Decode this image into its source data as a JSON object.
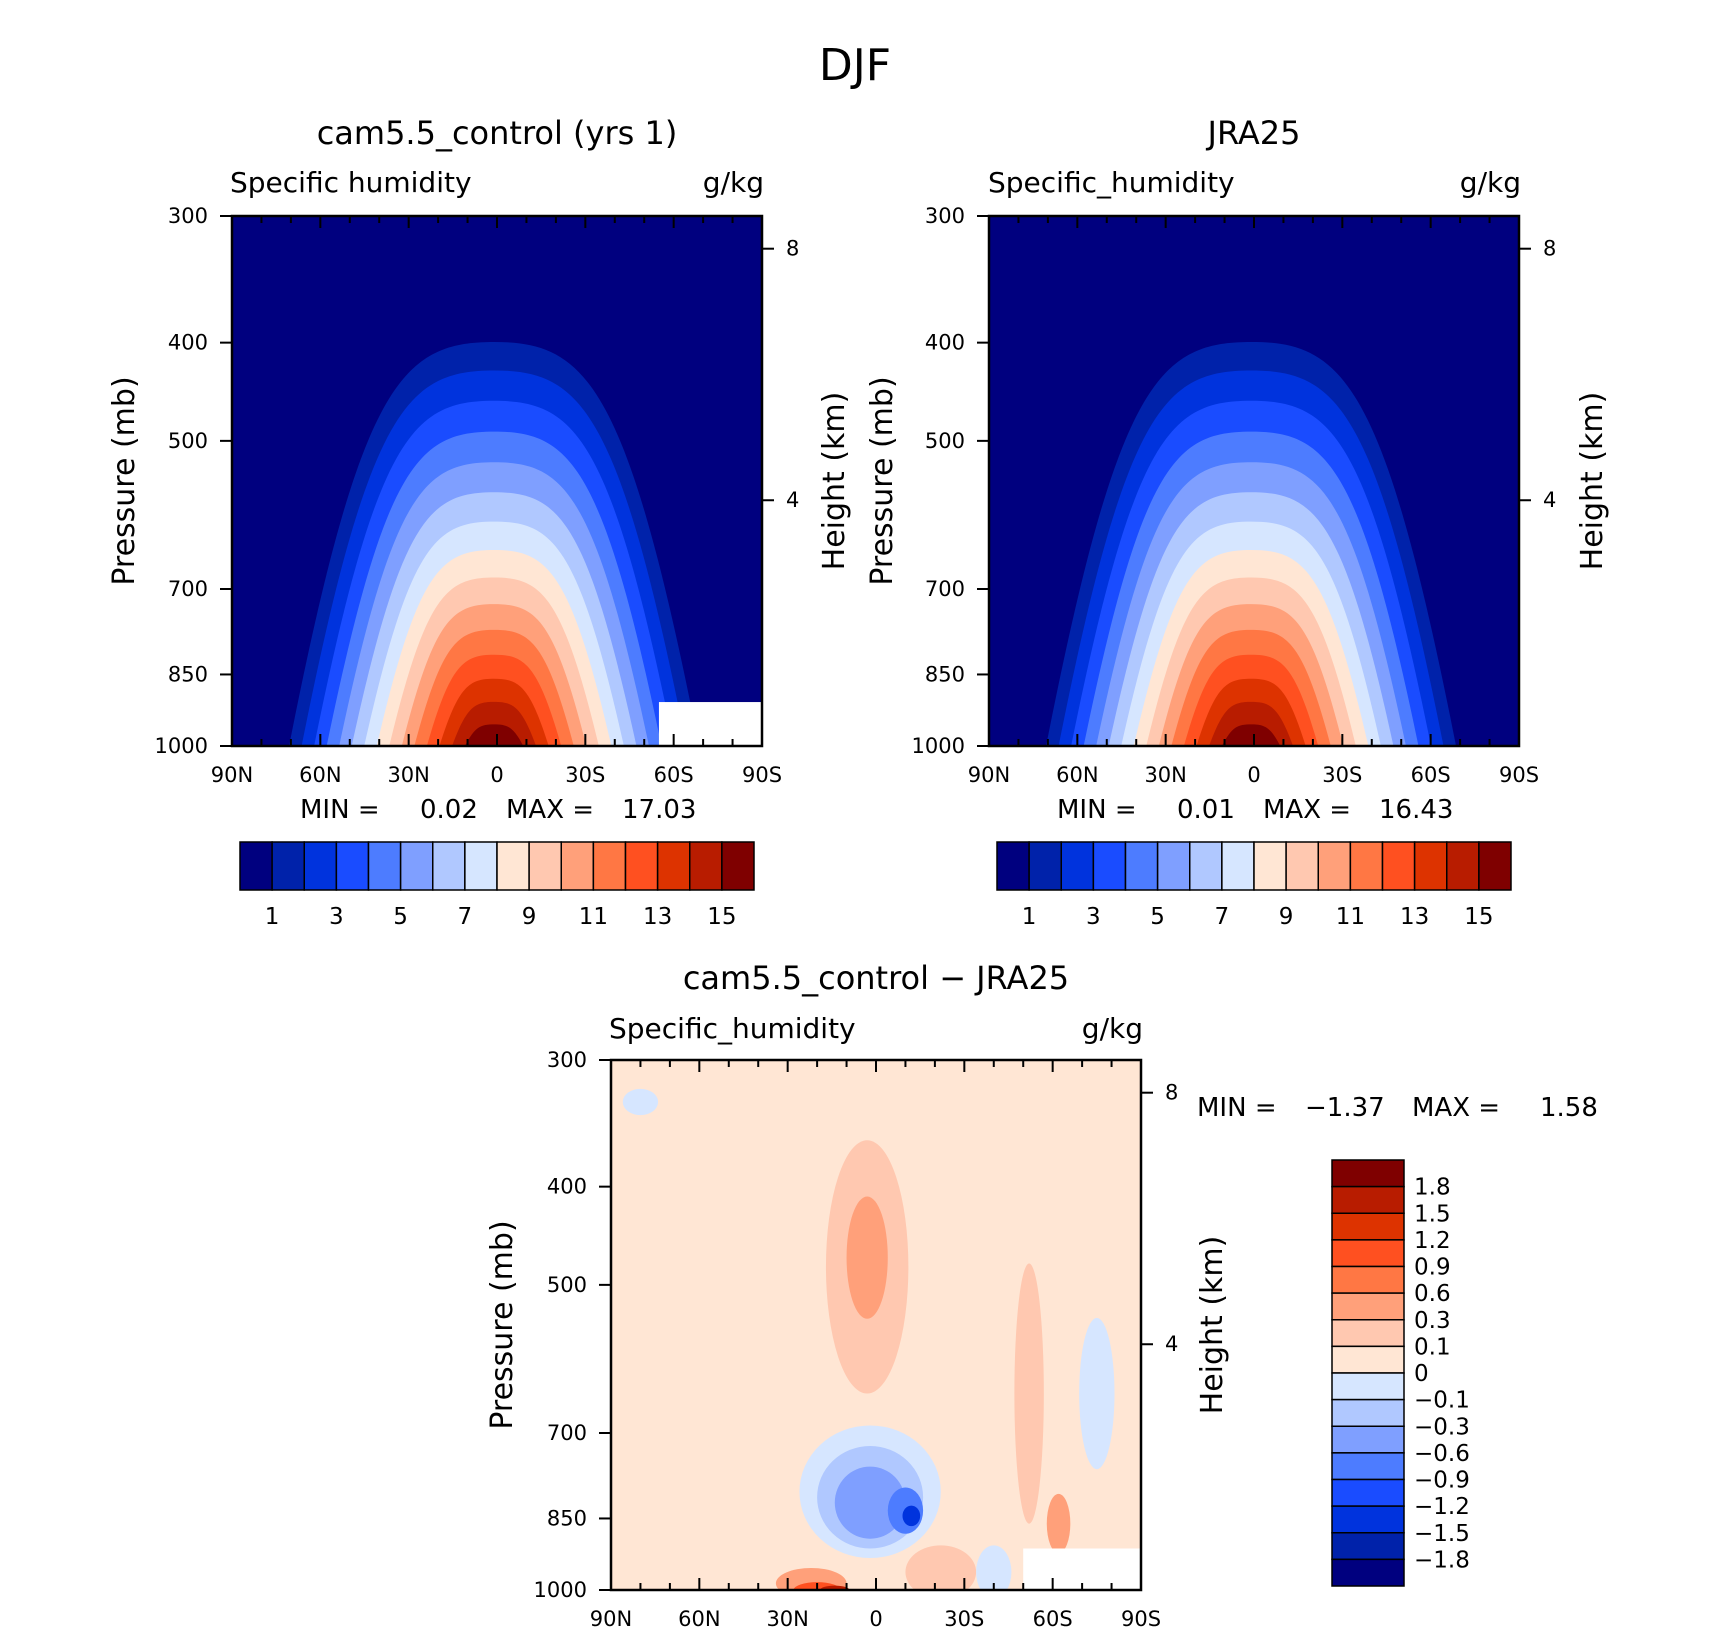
{
  "figure": {
    "title": "DJF"
  },
  "chart_data": [
    {
      "id": "model",
      "type": "contour",
      "title": "cam5.5_control (yrs 1)",
      "variable": "Specific humidity",
      "units": "g/kg",
      "xlabel": "",
      "ylabel": "Pressure (mb)",
      "ylabel_right": "Height (km)",
      "x_ticks": [
        "90N",
        "60N",
        "30N",
        "0",
        "30S",
        "60S",
        "90S"
      ],
      "x_range": [
        90,
        -90
      ],
      "y_ticks": [
        300,
        400,
        500,
        700,
        850,
        1000
      ],
      "y_range": [
        300,
        1000
      ],
      "y_scale": "log",
      "right_ticks": [
        8,
        4
      ],
      "min_label": "MIN =",
      "min_value": "0.02",
      "max_label": "MAX =",
      "max_value": "17.03",
      "min": 0.02,
      "max": 17.03,
      "field_peak": {
        "lat": 0,
        "value": 17.03
      },
      "masked_region": "surface below 850 mb south of 55S",
      "colorbar": {
        "orientation": "horizontal",
        "colors": [
          "#00007f",
          "#0022aa",
          "#0033dd",
          "#1a4cff",
          "#4d7cff",
          "#7f9fff",
          "#b0c8ff",
          "#d6e6ff",
          "#ffe6d4",
          "#ffc8b0",
          "#ffa07a",
          "#ff7744",
          "#ff5020",
          "#dd3300",
          "#b81c00",
          "#7f0000"
        ],
        "labels": [
          "1",
          "3",
          "5",
          "7",
          "9",
          "11",
          "13",
          "15"
        ]
      }
    },
    {
      "id": "obs",
      "type": "contour",
      "title": "JRA25",
      "variable": "Specific_humidity",
      "units": "g/kg",
      "xlabel": "",
      "ylabel": "Pressure (mb)",
      "ylabel_right": "Height (km)",
      "x_ticks": [
        "90N",
        "60N",
        "30N",
        "0",
        "30S",
        "60S",
        "90S"
      ],
      "x_range": [
        90,
        -90
      ],
      "y_ticks": [
        300,
        400,
        500,
        700,
        850,
        1000
      ],
      "y_range": [
        300,
        1000
      ],
      "y_scale": "log",
      "right_ticks": [
        8,
        4
      ],
      "min_label": "MIN =",
      "min_value": "0.01",
      "max_label": "MAX =",
      "max_value": "16.43",
      "min": 0.01,
      "max": 16.43,
      "field_peak": {
        "lat": 0,
        "value": 16.43
      },
      "colorbar": {
        "orientation": "horizontal",
        "colors": [
          "#00007f",
          "#0022aa",
          "#0033dd",
          "#1a4cff",
          "#4d7cff",
          "#7f9fff",
          "#b0c8ff",
          "#d6e6ff",
          "#ffe6d4",
          "#ffc8b0",
          "#ffa07a",
          "#ff7744",
          "#ff5020",
          "#dd3300",
          "#b81c00",
          "#7f0000"
        ],
        "labels": [
          "1",
          "3",
          "5",
          "7",
          "9",
          "11",
          "13",
          "15"
        ]
      }
    },
    {
      "id": "diff",
      "type": "contour",
      "title": "cam5.5_control - JRA25",
      "variable": "Specific_humidity",
      "units": "g/kg",
      "xlabel": "",
      "ylabel": "Pressure (mb)",
      "ylabel_right": "Height (km)",
      "x_ticks": [
        "90N",
        "60N",
        "30N",
        "0",
        "30S",
        "60S",
        "90S"
      ],
      "x_range": [
        90,
        -90
      ],
      "y_ticks": [
        300,
        400,
        500,
        700,
        850,
        1000
      ],
      "y_range": [
        300,
        1000
      ],
      "y_scale": "log",
      "right_ticks": [
        8,
        4
      ],
      "min_label": "MIN =",
      "min_value": "-1.37",
      "max_label": "MAX =",
      "max_value": "1.58",
      "min": -1.37,
      "max": 1.58,
      "colorbar": {
        "orientation": "vertical",
        "colors": [
          "#7f0000",
          "#b81c00",
          "#dd3300",
          "#ff5020",
          "#ff7744",
          "#ffa07a",
          "#ffc8b0",
          "#ffe6d4",
          "#d6e6ff",
          "#b0c8ff",
          "#7f9fff",
          "#4d7cff",
          "#1a4cff",
          "#0033dd",
          "#0022aa",
          "#00007f"
        ],
        "labels": [
          "1.8",
          "1.5",
          "1.2",
          "0.9",
          "0.6",
          "0.3",
          "0.1",
          "0",
          "-0.1",
          "-0.3",
          "-0.6",
          "-0.9",
          "-1.2",
          "-1.5",
          "-1.8"
        ]
      }
    }
  ]
}
